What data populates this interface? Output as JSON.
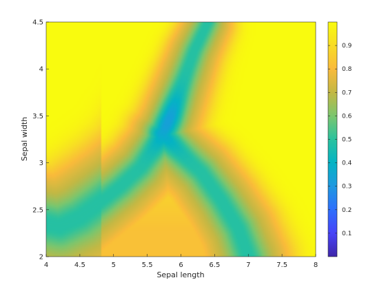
{
  "chart_data": {
    "type": "heatmap",
    "title": "",
    "xlabel": "Sepal length",
    "ylabel": "Sepal width",
    "xlim": [
      4,
      8
    ],
    "ylim": [
      2,
      4.5
    ],
    "xticks": [
      "4",
      "4.5",
      "5",
      "5.5",
      "6",
      "6.5",
      "7",
      "7.5",
      "8"
    ],
    "yticks": [
      "2",
      "2.5",
      "3",
      "3.5",
      "4",
      "4.5"
    ],
    "colorbar": {
      "colormap": "parula",
      "range": [
        0,
        1
      ],
      "ticks": [
        "0.1",
        "0.2",
        "0.3",
        "0.4",
        "0.5",
        "0.6",
        "0.7",
        "0.8",
        "0.9"
      ]
    },
    "valleys_description_points": {
      "left_valley": [
        [
          4.0,
          2.35
        ],
        [
          4.2,
          2.32
        ],
        [
          4.5,
          2.42
        ],
        [
          4.8,
          2.58
        ],
        [
          5.1,
          2.75
        ],
        [
          5.4,
          2.95
        ],
        [
          5.7,
          3.25
        ],
        [
          5.85,
          3.5
        ],
        [
          6.0,
          3.8
        ],
        [
          6.2,
          4.2
        ],
        [
          6.4,
          4.5
        ]
      ],
      "right_valley": [
        [
          5.7,
          3.3
        ],
        [
          6.0,
          3.1
        ],
        [
          6.3,
          2.9
        ],
        [
          6.6,
          2.6
        ],
        [
          6.85,
          2.3
        ],
        [
          7.0,
          2.0
        ]
      ],
      "minimum_point": [
        5.78,
        3.45
      ],
      "minimum_value": 0.3
    },
    "grid": false
  }
}
